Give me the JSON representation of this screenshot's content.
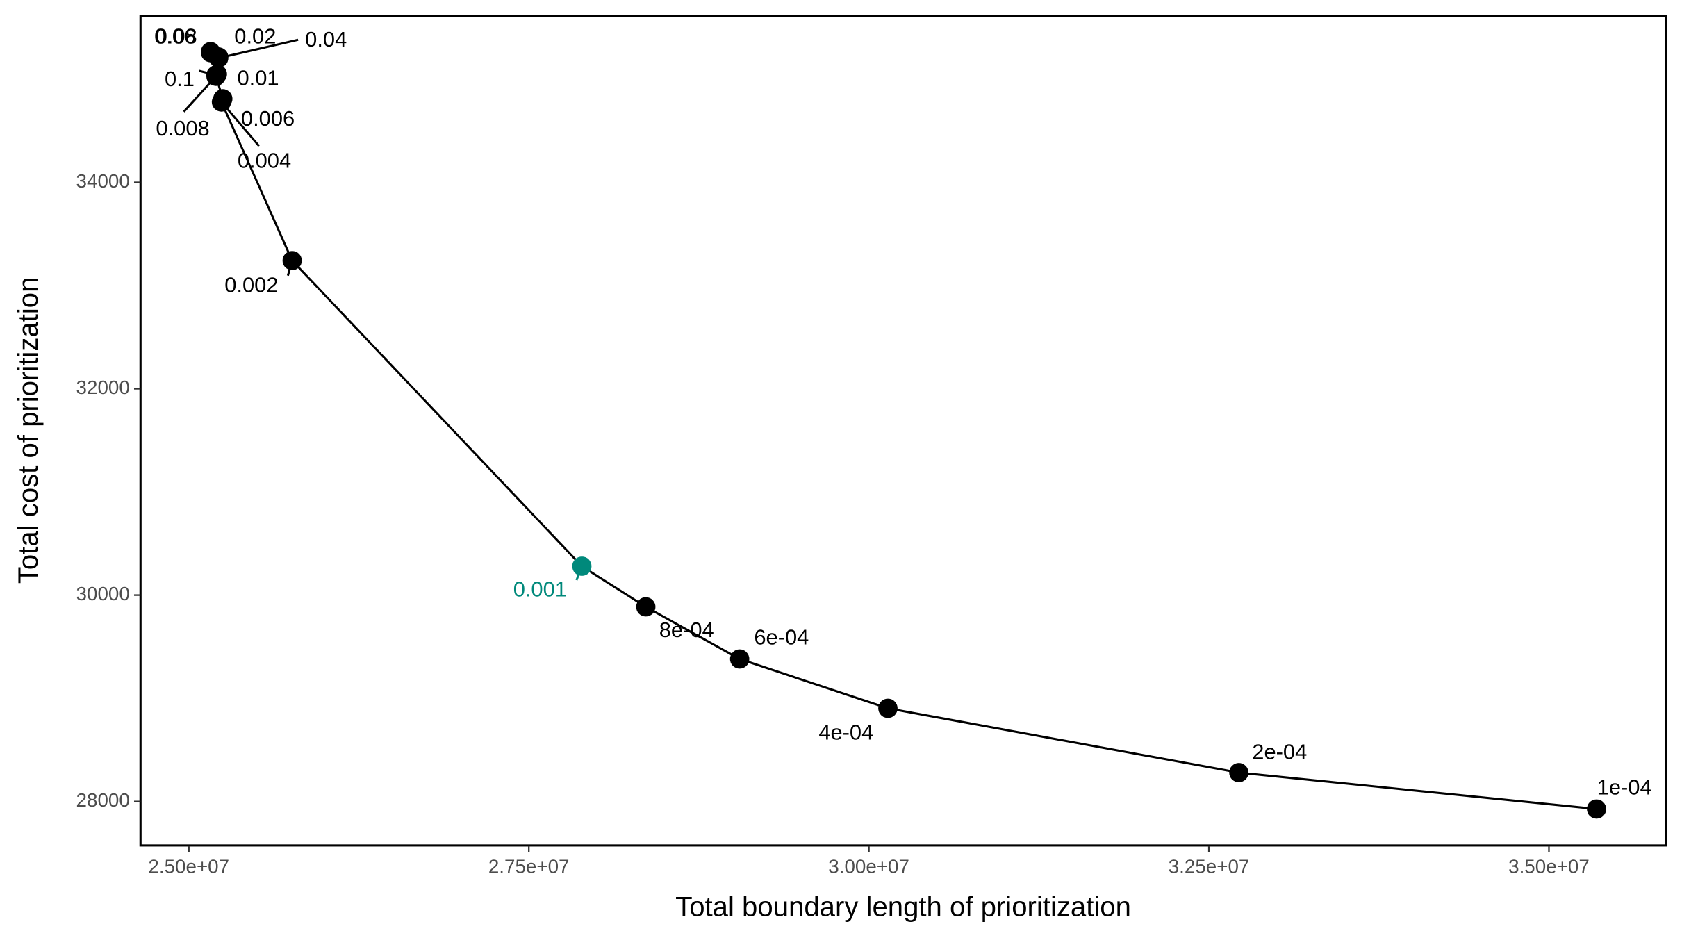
{
  "chart_data": {
    "type": "line",
    "x_label": "Total boundary length of prioritization",
    "y_label": "Total cost of prioritization",
    "x": [
      25200000,
      25160000,
      25160000,
      25220000,
      25220000,
      25210000,
      25200000,
      25250000,
      25240000,
      25760000,
      27890000,
      28360000,
      29050000,
      30140000,
      32720000,
      35350000
    ],
    "values": [
      35040,
      35268,
      35257,
      35205,
      35215,
      35049,
      35028,
      34810,
      34779,
      33242,
      30280,
      29886,
      29381,
      28903,
      28280,
      27927
    ],
    "point_labels": [
      "0.1",
      "0.08",
      "0.06",
      "0.04",
      "0.02",
      "0.01",
      "0.008",
      "0.006",
      "0.004",
      "0.002",
      "0.001",
      "8e-04",
      "6e-04",
      "4e-04",
      "2e-04",
      "1e-04"
    ],
    "color": "#000000",
    "point_colors": [
      "#000000",
      "#000000",
      "#000000",
      "#000000",
      "#000000",
      "#000000",
      "#000000",
      "#000000",
      "#000000",
      "#000000",
      "#00897b",
      "#000000",
      "#000000",
      "#000000",
      "#000000",
      "#000000"
    ],
    "xlim": [
      24645000,
      35860000
    ],
    "ylim": [
      27574,
      35610
    ],
    "xticks": [
      {
        "value": 25000000,
        "label": "2.50e+07"
      },
      {
        "value": 27500000,
        "label": "2.75e+07"
      },
      {
        "value": 30000000,
        "label": "3.00e+07"
      },
      {
        "value": 32500000,
        "label": "3.25e+07"
      },
      {
        "value": 35000000,
        "label": "3.50e+07"
      }
    ],
    "yticks": [
      28000,
      30000,
      32000,
      34000
    ],
    "grid": false
  }
}
